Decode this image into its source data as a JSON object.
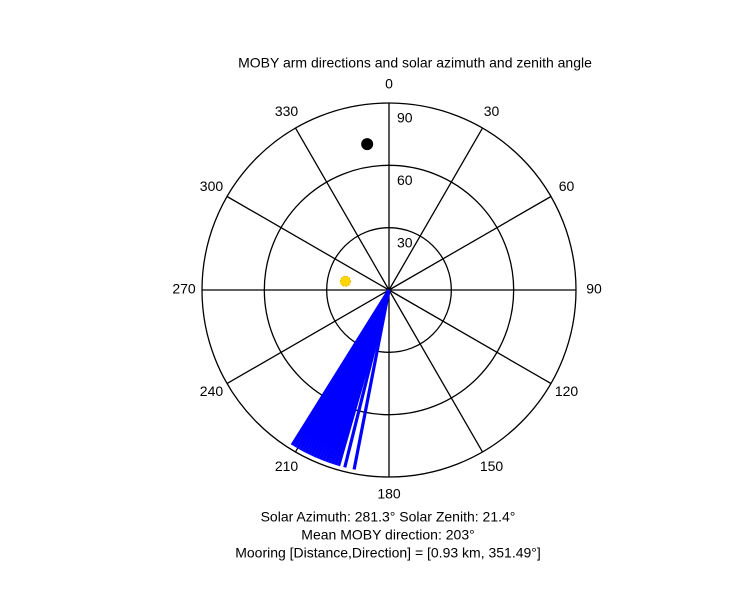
{
  "chart_data": {
    "type": "polar",
    "title": "MOBY arm directions and solar azimuth and zenith angle",
    "theta_ticks": [
      0,
      30,
      60,
      90,
      120,
      150,
      180,
      210,
      240,
      270,
      300,
      330
    ],
    "rlim": [
      0,
      90
    ],
    "rticks": [
      30,
      60,
      90
    ],
    "arms": {
      "color": "#0000ff",
      "r": 88,
      "directions": [
        191,
        194,
        196,
        197,
        198,
        199,
        200,
        201,
        202,
        203,
        204,
        205,
        206,
        207,
        208,
        209,
        210,
        211,
        212
      ]
    },
    "sun": {
      "color": "#ffd700",
      "azimuth": 281.3,
      "zenith": 21.4
    },
    "mooring": {
      "color": "#000000",
      "direction": 351.49,
      "r": 71
    },
    "annotations": [
      "Solar Azimuth: 281.3°   Solar Zenith: 21.4°",
      "Mean MOBY direction: 203°",
      "Mooring [Distance,Direction] = [0.93 km, 351.49°]"
    ]
  }
}
